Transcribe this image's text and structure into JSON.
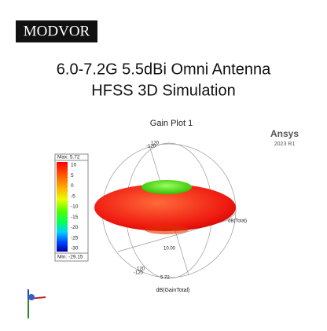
{
  "brand": "MODVOR",
  "title": [
    "6.0-7.2G 5.5dBi Omni Antenna",
    "HFSS 3D Simulation"
  ],
  "plot": {
    "title": "Gain Plot 1",
    "vendor": "Ansys",
    "version": "2023 R1",
    "legend": {
      "max": "Max: 5.72",
      "ticks": [
        10,
        5,
        0,
        -5,
        -10,
        -15,
        -20,
        -25,
        -30
      ],
      "min": "Min: -29.15"
    },
    "labels": {
      "top_left": "-120",
      "top_right": "120",
      "bottom_left": "120",
      "bottom_left2": "-120",
      "ring": "10.00",
      "peak": "5.72",
      "side": "dB(Total)",
      "quantity": "dB(GainTotal)"
    }
  }
}
